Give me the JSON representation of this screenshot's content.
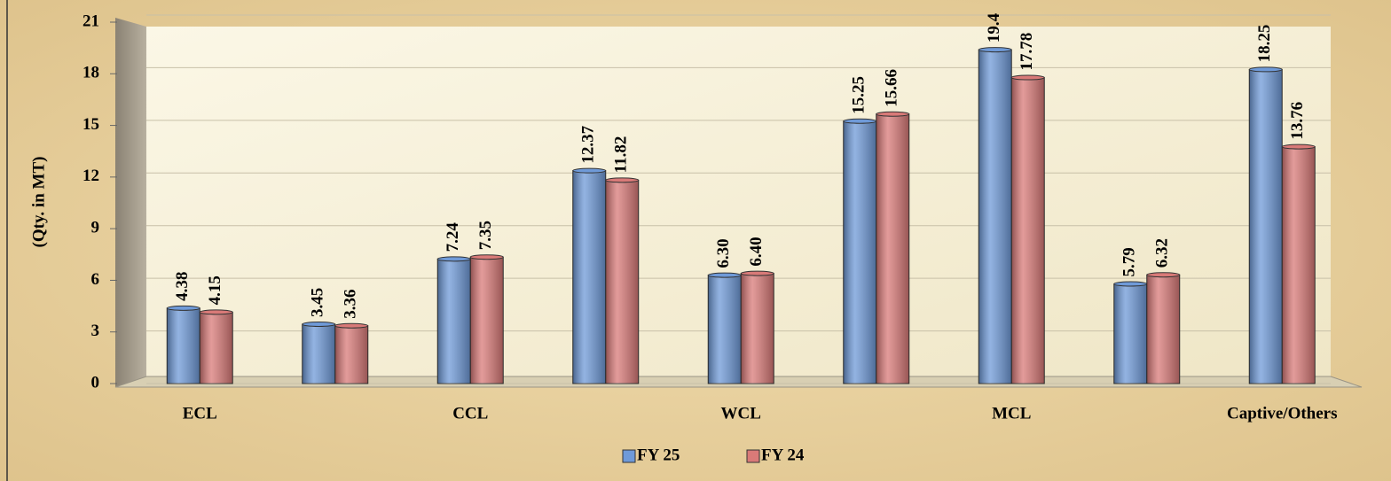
{
  "chart_data": {
    "type": "bar",
    "y_label": "(Qty. in MT)",
    "categories": [
      "ECL",
      null,
      "CCL",
      null,
      "WCL",
      null,
      "MCL",
      null,
      "Captive/Others"
    ],
    "series": [
      {
        "name": "FY 25",
        "color": "#6f9ad8",
        "values": [
          4.38,
          3.45,
          7.24,
          12.37,
          6.3,
          15.25,
          19.4,
          5.79,
          18.25
        ],
        "value_labels": [
          "4.38",
          "3.45",
          "7.24",
          "12.37",
          "6.30",
          "15.25",
          "19.4",
          "5.79",
          "18.25"
        ]
      },
      {
        "name": "FY 24",
        "color": "#d97a78",
        "values": [
          4.15,
          3.36,
          7.35,
          11.82,
          6.4,
          15.66,
          17.78,
          6.32,
          13.76
        ],
        "value_labels": [
          "4.15",
          "3.36",
          "7.35",
          "11.82",
          "6.40",
          "15.66",
          "17.78",
          "6.32",
          "13.76"
        ]
      }
    ],
    "ylim": [
      0,
      21
    ],
    "yticks": [
      0,
      3,
      6,
      9,
      12,
      15,
      18,
      21
    ],
    "grid": true,
    "legend": "bottom"
  }
}
